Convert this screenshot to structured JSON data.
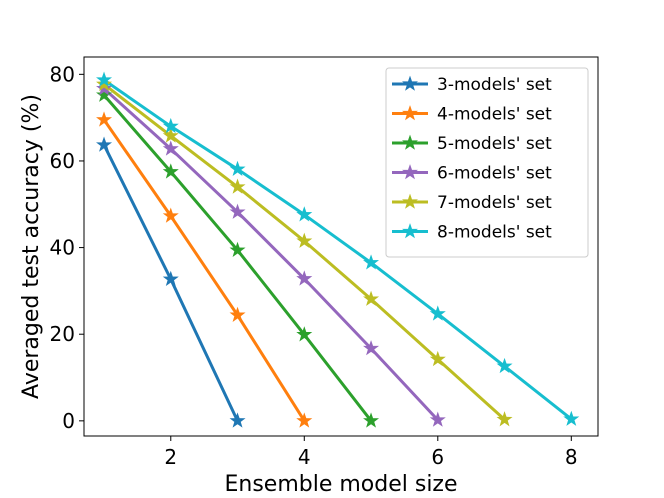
{
  "chart_data": {
    "type": "line",
    "title": "",
    "xlabel": "Ensemble model size",
    "ylabel": "Averaged test accuracy (%)",
    "xlim": [
      0.7,
      8.4
    ],
    "ylim": [
      -3.5,
      84
    ],
    "xticks": [
      2,
      4,
      6,
      8
    ],
    "yticks": [
      0,
      20,
      40,
      60,
      80
    ],
    "grid": false,
    "legend_position": "upper-right",
    "marker": "star",
    "series": [
      {
        "name": "3-models' set",
        "color": "#1f77b4",
        "x": [
          1,
          2,
          3
        ],
        "y": [
          63.7,
          32.7,
          0.0
        ]
      },
      {
        "name": "4-models' set",
        "color": "#ff7f0e",
        "x": [
          1,
          2,
          3,
          4
        ],
        "y": [
          69.5,
          47.3,
          24.4,
          0.0
        ]
      },
      {
        "name": "5-models' set",
        "color": "#2ca02c",
        "x": [
          1,
          2,
          3,
          4,
          5
        ],
        "y": [
          75.2,
          57.5,
          39.4,
          19.9,
          0.0
        ]
      },
      {
        "name": "6-models' set",
        "color": "#9467bd",
        "x": [
          1,
          2,
          3,
          4,
          5,
          6
        ],
        "y": [
          76.7,
          62.8,
          48.2,
          32.8,
          16.7,
          0.2
        ]
      },
      {
        "name": "7-models' set",
        "color": "#bcbd22",
        "x": [
          1,
          2,
          3,
          4,
          5,
          6,
          7
        ],
        "y": [
          77.7,
          65.8,
          54.0,
          41.5,
          28.1,
          14.2,
          0.3
        ]
      },
      {
        "name": "8-models' set",
        "color": "#17becf",
        "x": [
          1,
          2,
          3,
          4,
          5,
          6,
          7,
          8
        ],
        "y": [
          78.7,
          68.0,
          58.1,
          47.6,
          36.5,
          24.7,
          12.6,
          0.4
        ]
      }
    ]
  }
}
